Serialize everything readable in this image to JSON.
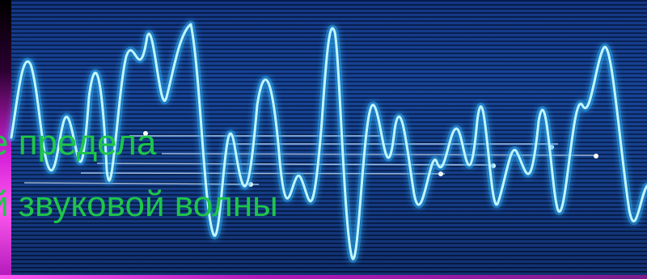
{
  "caption": {
    "line1": "е предела",
    "line2": "й звуковой волны"
  },
  "colors": {
    "background": "#0f3a8c",
    "wave": "#38e2ff",
    "text": "#1ec64a",
    "left_edge": "#d21fd6"
  },
  "icons": [
    "sound-wave-graphic"
  ]
}
